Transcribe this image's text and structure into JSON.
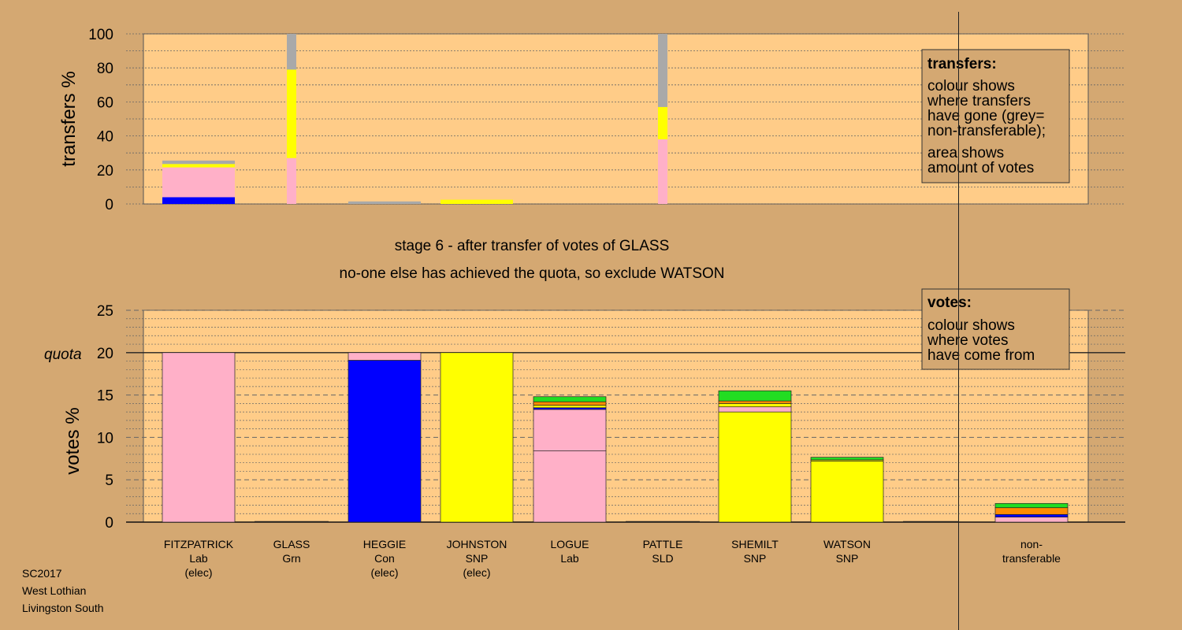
{
  "chart_data": [
    {
      "panel": "transfers",
      "type": "bar",
      "stacked": true,
      "ylabel": "transfers %",
      "ylim": [
        0,
        100
      ],
      "yticks": [
        0,
        20,
        40,
        60,
        80,
        100
      ],
      "grid": "dotted, every 10",
      "legend_placement": "top-right",
      "legend": {
        "title": "transfers:",
        "lines": [
          "colour shows",
          "where transfers",
          "have gone (grey=",
          "non-transferable);",
          "area shows",
          "amount of votes"
        ]
      },
      "categories": [
        "FITZPATRICK",
        "GLASS",
        "HEGGIE",
        "JOHNSTON",
        "LOGUE",
        "PATTLE",
        "SHEMILT",
        "WATSON",
        "non-transferable"
      ],
      "bars": [
        {
          "category": "FITZPATRICK",
          "width": "wide",
          "segments": [
            {
              "party": "Con",
              "color": "#0000FF",
              "value": 4
            },
            {
              "party": "Lab",
              "color": "#FFB0C8",
              "value": 17.5
            },
            {
              "party": "SNP",
              "color": "#FFFF00",
              "value": 2
            },
            {
              "party": "non-transferable",
              "color": "#A9A9A9",
              "value": 2
            }
          ]
        },
        {
          "category": "GLASS",
          "width": "narrow",
          "segments": [
            {
              "party": "Lab",
              "color": "#FFB0C8",
              "value": 27
            },
            {
              "party": "SNP",
              "color": "#FFFF00",
              "value": 52
            },
            {
              "party": "non-transferable",
              "color": "#A9A9A9",
              "value": 21
            }
          ]
        },
        {
          "category": "HEGGIE",
          "width": "wide",
          "segments": [
            {
              "party": "non-transferable",
              "color": "#A9A9A9",
              "value": 1.5
            }
          ]
        },
        {
          "category": "JOHNSTON",
          "width": "wide",
          "segments": [
            {
              "party": "SNP",
              "color": "#FFFF00",
              "value": 2.5
            }
          ]
        },
        {
          "category": "PATTLE",
          "width": "narrow",
          "segments": [
            {
              "party": "Lab",
              "color": "#FFB0C8",
              "value": 38
            },
            {
              "party": "SNP",
              "color": "#FFFF00",
              "value": 19
            },
            {
              "party": "non-transferable",
              "color": "#A9A9A9",
              "value": 43
            }
          ]
        }
      ]
    },
    {
      "panel": "votes",
      "type": "bar",
      "stacked": true,
      "ylabel": "votes %",
      "ylim": [
        0,
        25
      ],
      "yticks": [
        0,
        5,
        10,
        15,
        20,
        25
      ],
      "quota": 20,
      "quota_label": "quota",
      "grid": "dashed every 5, dotted every 1",
      "legend_placement": "top-right",
      "legend": {
        "title": "votes:",
        "lines": [
          "colour shows",
          "where votes",
          "have come from"
        ]
      },
      "categories": [
        {
          "name": "FITZPATRICK",
          "party": "Lab",
          "note": "(elec)"
        },
        {
          "name": "GLASS",
          "party": "Grn",
          "note": ""
        },
        {
          "name": "HEGGIE",
          "party": "Con",
          "note": "(elec)"
        },
        {
          "name": "JOHNSTON",
          "party": "SNP",
          "note": "(elec)"
        },
        {
          "name": "LOGUE",
          "party": "Lab",
          "note": ""
        },
        {
          "name": "PATTLE",
          "party": "SLD",
          "note": ""
        },
        {
          "name": "SHEMILT",
          "party": "SNP",
          "note": ""
        },
        {
          "name": "WATSON",
          "party": "SNP",
          "note": ""
        },
        {
          "name": "non-\ntransferable",
          "party": "",
          "note": ""
        }
      ],
      "bars": [
        {
          "category": "FITZPATRICK",
          "segments": [
            {
              "source": "Lab",
              "color": "#FFB0C8",
              "value": 20
            }
          ]
        },
        {
          "category": "GLASS",
          "segments": []
        },
        {
          "category": "HEGGIE",
          "segments": [
            {
              "source": "Con",
              "color": "#0000FF",
              "value": 19.1
            },
            {
              "source": "Lab",
              "color": "#FFB0C8",
              "value": 0.9
            }
          ]
        },
        {
          "category": "JOHNSTON",
          "segments": [
            {
              "source": "SNP",
              "color": "#FFFF00",
              "value": 20
            }
          ]
        },
        {
          "category": "LOGUE",
          "segments": [
            {
              "source": "Lab",
              "color": "#FFB0C8",
              "value": 8.4
            },
            {
              "source": "Lab",
              "color": "#FFB0C8",
              "value": 4.9
            },
            {
              "source": "Con",
              "color": "#0000FF",
              "value": 0.2
            },
            {
              "source": "SNP",
              "color": "#FFFF00",
              "value": 0.3
            },
            {
              "source": "SLD",
              "color": "#FF8C00",
              "value": 0.4
            },
            {
              "source": "Grn",
              "color": "#22DD22",
              "value": 0.6
            }
          ]
        },
        {
          "category": "PATTLE",
          "segments": []
        },
        {
          "category": "SHEMILT",
          "segments": [
            {
              "source": "SNP",
              "color": "#FFFF00",
              "value": 13
            },
            {
              "source": "Lab",
              "color": "#FFB0C8",
              "value": 0.6
            },
            {
              "source": "SNP",
              "color": "#FFFF00",
              "value": 0.4
            },
            {
              "source": "SLD",
              "color": "#FF8C00",
              "value": 0.3
            },
            {
              "source": "Grn",
              "color": "#22DD22",
              "value": 1.2
            }
          ]
        },
        {
          "category": "WATSON",
          "segments": [
            {
              "source": "SNP",
              "color": "#FFFF00",
              "value": 7.2
            },
            {
              "source": "SNP",
              "color": "#FFFF00",
              "value": 0.15
            },
            {
              "source": "Grn",
              "color": "#22DD22",
              "value": 0.3
            }
          ]
        },
        {
          "category": "non-transferable",
          "segments": [
            {
              "source": "Lab",
              "color": "#FFB0C8",
              "value": 0.6
            },
            {
              "source": "Con",
              "color": "#0000FF",
              "value": 0.3
            },
            {
              "source": "SLD",
              "color": "#FF8C00",
              "value": 0.8
            },
            {
              "source": "Grn",
              "color": "#22DD22",
              "value": 0.5
            }
          ]
        }
      ]
    }
  ],
  "caption": {
    "line1": "stage 6 - after transfer of votes of GLASS",
    "line2": "no-one else has achieved the quota, so exclude WATSON"
  },
  "footer": [
    "SC2017",
    "West Lothian",
    "Livingston South"
  ],
  "colors": {
    "background": "#D4A872",
    "plot_area": "#FFCC88",
    "Lab": "#FFB0C8",
    "Con": "#0000FF",
    "SNP": "#FFFF00",
    "Grn": "#22DD22",
    "SLD": "#FF8C00",
    "non-transferable": "#A9A9A9"
  }
}
